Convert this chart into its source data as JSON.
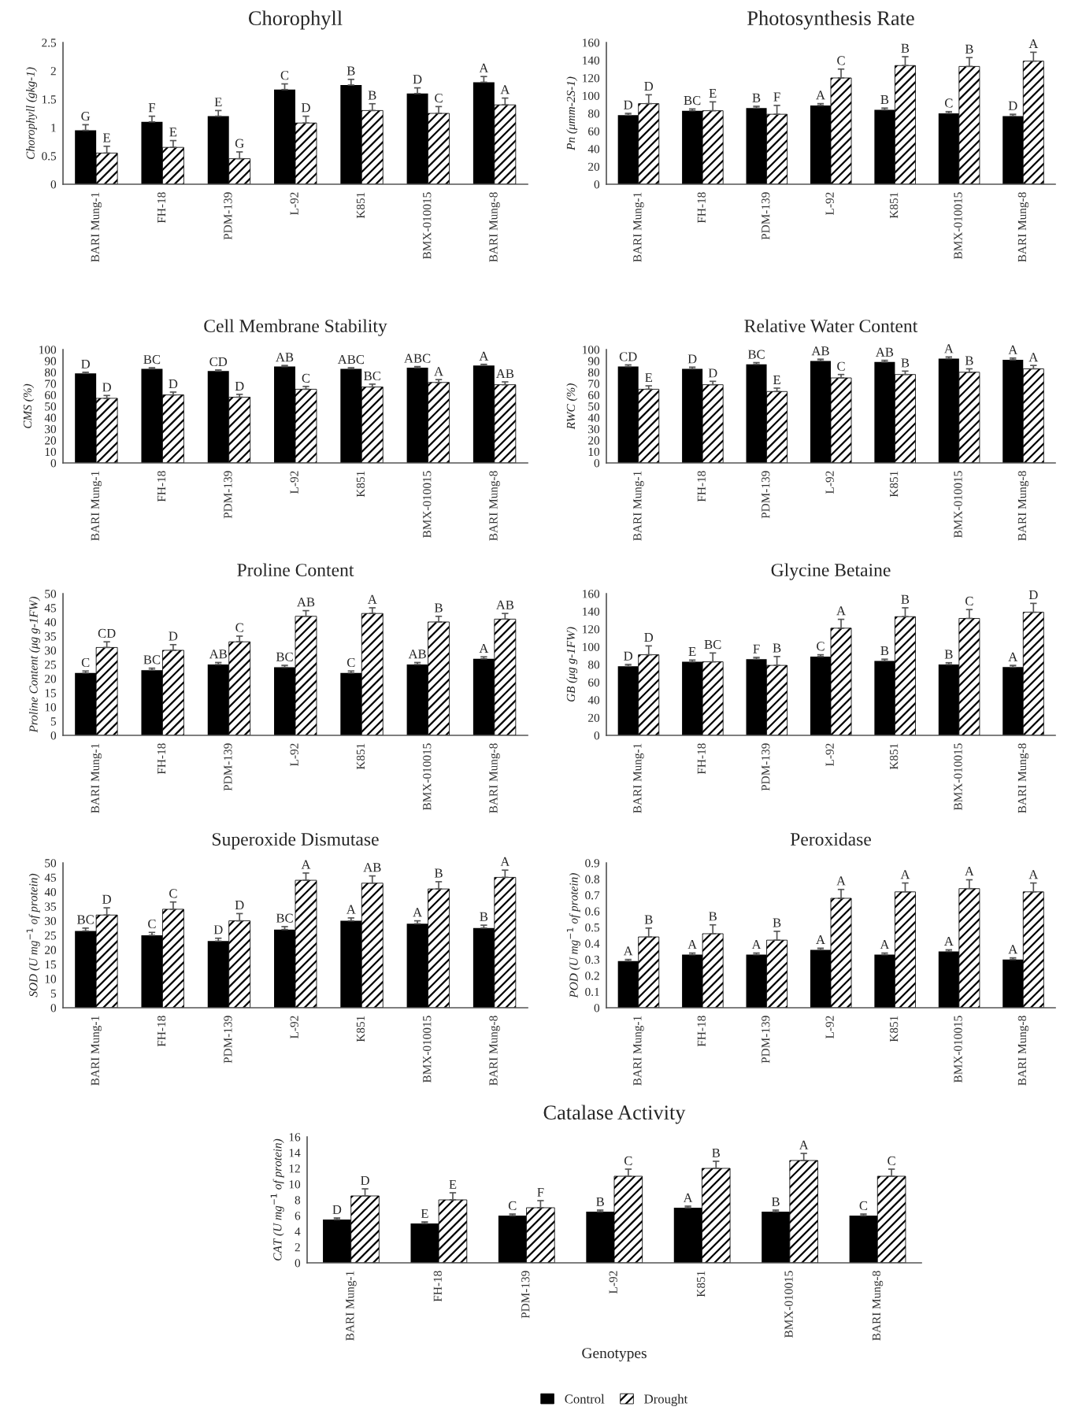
{
  "chart_data": [
    {
      "type": "bar",
      "title": "Chorophyll",
      "ylabel": "Chorophyll (gkg-1)",
      "categories": [
        "BARI Mung-1",
        "FH-18",
        "PDM-139",
        "L-92",
        "K851",
        "BMX-010015",
        "BARI Mung-8"
      ],
      "ylim": [
        0,
        2.5
      ],
      "yticks": [
        0,
        0.5,
        1,
        1.5,
        2,
        2.5
      ],
      "series": [
        {
          "color": "#000000",
          "values": [
            0.95,
            1.1,
            1.2,
            1.67,
            1.75,
            1.6,
            1.8
          ],
          "errors": [
            0.1,
            0.1,
            0.1,
            0.1,
            0.1,
            0.1,
            0.1
          ],
          "value_labels": [
            "G",
            "F",
            "E",
            "C",
            "B",
            "D",
            "A"
          ]
        },
        {
          "color": "#000000",
          "values": [
            0.55,
            0.65,
            0.45,
            1.08,
            1.3,
            1.25,
            1.4
          ],
          "errors": [
            0.12,
            0.12,
            0.12,
            0.12,
            0.12,
            0.12,
            0.12
          ],
          "value_labels": [
            "E",
            "E",
            "G",
            "D",
            "B",
            "C",
            "A"
          ]
        }
      ]
    },
    {
      "type": "bar",
      "title": "Photosynthesis Rate",
      "ylabel": "Pn (μmm-2S-1)",
      "categories": [
        "BARI Mung-1",
        "FH-18",
        "PDM-139",
        "L-92",
        "K851",
        "BMX-010015",
        "BARI Mung-8"
      ],
      "ylim": [
        0,
        160
      ],
      "yticks": [
        0,
        20,
        40,
        60,
        80,
        100,
        120,
        140,
        160
      ],
      "series": [
        {
          "color": "#000000",
          "values": [
            78,
            83,
            86,
            89,
            84,
            80,
            77
          ],
          "errors": [
            2,
            2,
            2,
            2,
            2,
            2,
            2
          ],
          "value_labels": [
            "D",
            "BC",
            "B",
            "A",
            "B",
            "C",
            "D"
          ]
        },
        {
          "color": "#000000",
          "values": [
            91,
            83,
            79,
            120,
            134,
            133,
            139
          ],
          "errors": [
            10,
            10,
            10,
            10,
            10,
            10,
            10
          ],
          "value_labels": [
            "D",
            "E",
            "F",
            "C",
            "B",
            "B",
            "A"
          ]
        }
      ]
    },
    {
      "type": "bar",
      "title": "Cell Membrane Stability",
      "ylabel": "CMS (%)",
      "categories": [
        "BARI Mung-1",
        "FH-18",
        "PDM-139",
        "L-92",
        "K851",
        "BMX-010015",
        "BARI Mung-8"
      ],
      "ylim": [
        0,
        100
      ],
      "yticks": [
        0,
        10,
        20,
        30,
        40,
        50,
        60,
        70,
        80,
        90,
        100
      ],
      "series": [
        {
          "color": "#000000",
          "values": [
            79,
            83,
            81,
            85,
            83,
            84,
            86
          ],
          "errors": [
            1,
            1,
            1,
            1,
            1,
            1,
            1
          ],
          "value_labels": [
            "D",
            "BC",
            "CD",
            "AB",
            "ABC",
            "ABC",
            "A"
          ]
        },
        {
          "color": "#000000",
          "values": [
            57,
            60,
            58,
            65,
            67,
            71,
            69
          ],
          "errors": [
            2.5,
            2.5,
            2.5,
            2.5,
            2.5,
            2.5,
            2.5
          ],
          "value_labels": [
            "D",
            "D",
            "D",
            "C",
            "BC",
            "A",
            "AB"
          ]
        }
      ]
    },
    {
      "type": "bar",
      "title": "Relative Water Content",
      "ylabel": "RWC (%)",
      "categories": [
        "BARI Mung-1",
        "FH-18",
        "PDM-139",
        "L-92",
        "K851",
        "BMX-010015",
        "BARI Mung-8"
      ],
      "ylim": [
        0,
        100
      ],
      "yticks": [
        0,
        10,
        20,
        30,
        40,
        50,
        60,
        70,
        80,
        90,
        100
      ],
      "series": [
        {
          "color": "#000000",
          "values": [
            85,
            83,
            87,
            90,
            89,
            92,
            91
          ],
          "errors": [
            1.5,
            1.5,
            1.5,
            1.5,
            1.5,
            1.5,
            1.5
          ],
          "value_labels": [
            "CD",
            "D",
            "BC",
            "AB",
            "AB",
            "A",
            "A"
          ]
        },
        {
          "color": "#000000",
          "values": [
            65,
            69,
            63,
            75,
            78,
            80,
            83
          ],
          "errors": [
            3,
            3,
            3,
            3,
            3,
            3,
            3
          ],
          "value_labels": [
            "E",
            "D",
            "E",
            "C",
            "B",
            "B",
            "A"
          ]
        }
      ]
    },
    {
      "type": "bar",
      "title": "Proline Content",
      "ylabel": "Proline Content (μg g-1FW)",
      "categories": [
        "BARI Mung-1",
        "FH-18",
        "PDM-139",
        "L-92",
        "K851",
        "BMX-010015",
        "BARI Mung-8"
      ],
      "ylim": [
        0,
        50
      ],
      "yticks": [
        0,
        5,
        10,
        15,
        20,
        25,
        30,
        35,
        40,
        45,
        50
      ],
      "series": [
        {
          "color": "#000000",
          "values": [
            22,
            23,
            25,
            24,
            22,
            25,
            27
          ],
          "errors": [
            0.7,
            0.7,
            0.7,
            0.7,
            0.7,
            0.7,
            0.7
          ],
          "value_labels": [
            "C",
            "BC",
            "AB",
            "BC",
            "C",
            "AB",
            "A"
          ]
        },
        {
          "color": "#000000",
          "values": [
            31,
            30,
            33,
            42,
            43,
            40,
            41
          ],
          "errors": [
            2,
            2,
            2,
            2,
            2,
            2,
            2
          ],
          "value_labels": [
            "CD",
            "D",
            "C",
            "AB",
            "A",
            "B",
            "AB"
          ]
        }
      ]
    },
    {
      "type": "bar",
      "title": "Glycine Betaine",
      "ylabel": "GB (μg g-1FW)",
      "categories": [
        "BARI Mung-1",
        "FH-18",
        "PDM-139",
        "L-92",
        "K851",
        "BMX-010015",
        "BARI Mung-8"
      ],
      "ylim": [
        0,
        160
      ],
      "yticks": [
        0,
        20,
        40,
        60,
        80,
        100,
        120,
        140,
        160
      ],
      "series": [
        {
          "color": "#000000",
          "values": [
            78,
            83,
            86,
            89,
            84,
            80,
            77
          ],
          "errors": [
            2,
            2,
            2,
            2,
            2,
            2,
            2
          ],
          "value_labels": [
            "D",
            "E",
            "F",
            "C",
            "B",
            "B",
            "A"
          ]
        },
        {
          "color": "#000000",
          "values": [
            91,
            83,
            79,
            121,
            134,
            132,
            139
          ],
          "errors": [
            10,
            10,
            10,
            10,
            10,
            10,
            10
          ],
          "value_labels": [
            "D",
            "BC",
            "B",
            "A",
            "B",
            "C",
            "D"
          ]
        }
      ]
    },
    {
      "type": "bar",
      "title": "Superoxide Dismutase",
      "ylabel": "SOD (U mg$^{−1}$ of protein)",
      "categories": [
        "BARI Mung-1",
        "FH-18",
        "PDM-139",
        "L-92",
        "K851",
        "BMX-010015",
        "BARI Mung-8"
      ],
      "ylim": [
        0,
        50
      ],
      "yticks": [
        0,
        5,
        10,
        15,
        20,
        25,
        30,
        35,
        40,
        45,
        50
      ],
      "series": [
        {
          "color": "#000000",
          "values": [
            26.5,
            25,
            23,
            27,
            30,
            29,
            27.5
          ],
          "errors": [
            1,
            1,
            1,
            1,
            1,
            1,
            1
          ],
          "value_labels": [
            "BC",
            "C",
            "D",
            "BC",
            "A",
            "A",
            "B"
          ]
        },
        {
          "color": "#000000",
          "values": [
            32,
            34,
            30,
            44,
            43,
            41,
            45
          ],
          "errors": [
            2.5,
            2.5,
            2.5,
            2.5,
            2.5,
            2.5,
            2.5
          ],
          "value_labels": [
            "D",
            "C",
            "D",
            "A",
            "AB",
            "B",
            "A"
          ]
        }
      ]
    },
    {
      "type": "bar",
      "title": "Peroxidase",
      "ylabel": "POD (U mg$^{−1}$ of protein)",
      "categories": [
        "BARI Mung-1",
        "FH-18",
        "PDM-139",
        "L-92",
        "K851",
        "BMX-010015",
        "BARI Mung-8"
      ],
      "ylim": [
        0,
        0.9
      ],
      "yticks": [
        0,
        0.1,
        0.2,
        0.3,
        0.4,
        0.5,
        0.6,
        0.7,
        0.8,
        0.9
      ],
      "series": [
        {
          "color": "#000000",
          "values": [
            0.29,
            0.33,
            0.33,
            0.36,
            0.33,
            0.35,
            0.3
          ],
          "errors": [
            0.01,
            0.01,
            0.01,
            0.01,
            0.01,
            0.01,
            0.01
          ],
          "value_labels": [
            "A",
            "A",
            "A",
            "A",
            "A",
            "A",
            "A"
          ]
        },
        {
          "color": "#000000",
          "values": [
            0.44,
            0.46,
            0.42,
            0.68,
            0.72,
            0.74,
            0.72
          ],
          "errors": [
            0.055,
            0.055,
            0.055,
            0.055,
            0.055,
            0.055,
            0.055
          ],
          "value_labels": [
            "B",
            "B",
            "B",
            "A",
            "A",
            "A",
            "A"
          ]
        }
      ]
    },
    {
      "type": "bar",
      "title": "Catalase Activity",
      "ylabel": "CAT (U mg$^{−1}$ of protein)",
      "xlabel": "Genotypes",
      "legend": "bottom",
      "categories": [
        "BARI Mung-1",
        "FH-18",
        "PDM-139",
        "L-92",
        "K851",
        "BMX-010015",
        "BARI Mung-8"
      ],
      "ylim": [
        0,
        16
      ],
      "yticks": [
        0,
        2,
        4,
        6,
        8,
        10,
        12,
        14,
        16
      ],
      "series": [
        {
          "name": "Control",
          "color": "#000000",
          "values": [
            5.5,
            5,
            6,
            6.5,
            7,
            6.5,
            6
          ],
          "errors": [
            0.2,
            0.2,
            0.2,
            0.2,
            0.2,
            0.2,
            0.2
          ],
          "value_labels": [
            "D",
            "E",
            "C",
            "B",
            "A",
            "B",
            "C"
          ]
        },
        {
          "name": "Drought",
          "color": "#000000",
          "values": [
            8.5,
            8,
            7,
            11,
            12,
            13,
            11
          ],
          "errors": [
            0.9,
            0.9,
            0.9,
            0.9,
            0.9,
            0.9,
            0.9
          ],
          "value_labels": [
            "D",
            "E",
            "F",
            "C",
            "B",
            "A",
            "C"
          ]
        }
      ]
    }
  ]
}
